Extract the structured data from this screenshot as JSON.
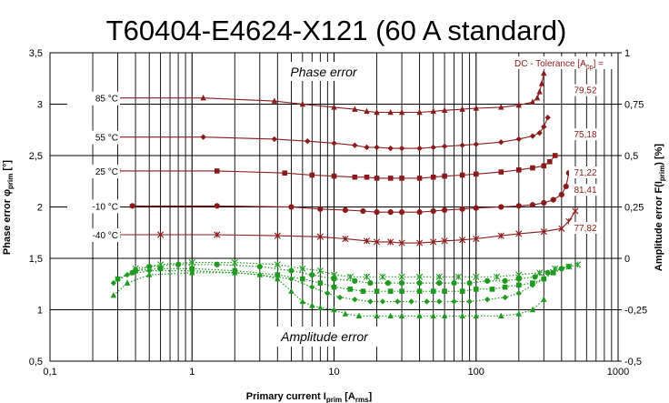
{
  "chart_data": {
    "type": "scatter",
    "title": "T60404-E4624-X121 (60 A standard)",
    "xlabel": "Primary current I",
    "xlabel_sub": "prim",
    "xlabel_unit": " [A",
    "xlabel_unit_sub": "rms",
    "xlabel_close": "]",
    "ylabel_left": "Phase error φ",
    "ylabel_left_sub": "prim",
    "ylabel_left_unit": " [°]",
    "ylabel_right": "Amplitude error F(I",
    "ylabel_right_sub": "prim",
    "ylabel_right_unit": ") [%]",
    "x_scale": "log",
    "xlim": [
      0.1,
      1000
    ],
    "x_ticks": [
      "0,1",
      "1",
      "10",
      "100",
      "1000"
    ],
    "ylim_left": [
      0.5,
      3.5
    ],
    "y_ticks_left": [
      "0,5",
      "1",
      "1,5",
      "2",
      "2,5",
      "3",
      "3,5"
    ],
    "ylim_right": [
      -0.5,
      1
    ],
    "y_ticks_right": [
      "-0,5",
      "-0,25",
      "0",
      "0,25",
      "0,5",
      "0,75",
      "1"
    ],
    "grid": true,
    "phase_label": "Phase error",
    "amplitude_label": "Amplitude error",
    "tolerance_label": "DC - Tolerance [A",
    "tolerance_label_sub": "0p",
    "tolerance_label_close": "] =",
    "colors": {
      "phase": "#8b1a1a",
      "amplitude": "#1f9a1f",
      "grid": "#000000"
    },
    "phase_series": [
      {
        "name": "85 °C",
        "marker": "triangle",
        "tolerance": "79,52",
        "x": [
          0.28,
          1.2,
          3.8,
          6,
          10,
          14,
          17,
          20,
          25,
          30,
          40,
          50,
          60,
          80,
          100,
          150,
          200,
          250,
          270,
          280,
          290,
          300
        ],
        "y": [
          3.06,
          3.06,
          3.03,
          3.0,
          2.97,
          2.95,
          2.93,
          2.92,
          2.92,
          2.92,
          2.92,
          2.93,
          2.94,
          2.95,
          2.96,
          2.97,
          2.99,
          3.02,
          3.06,
          3.12,
          3.2,
          3.3
        ]
      },
      {
        "name": "55 °C",
        "marker": "diamond",
        "tolerance": "75,18",
        "x": [
          0.28,
          1.2,
          3.8,
          6.5,
          10,
          14,
          17,
          20,
          25,
          30,
          40,
          50,
          60,
          80,
          100,
          150,
          200,
          250,
          280,
          300,
          320
        ],
        "y": [
          2.68,
          2.68,
          2.66,
          2.64,
          2.62,
          2.6,
          2.58,
          2.58,
          2.57,
          2.57,
          2.57,
          2.58,
          2.59,
          2.6,
          2.61,
          2.63,
          2.66,
          2.69,
          2.72,
          2.78,
          2.87
        ]
      },
      {
        "name": "25 °C",
        "marker": "square",
        "tolerance": "71,22",
        "x": [
          0.3,
          1.5,
          4.5,
          7,
          10,
          14,
          17,
          20,
          25,
          30,
          40,
          50,
          60,
          80,
          100,
          150,
          200,
          250,
          300,
          330,
          360
        ],
        "y": [
          2.35,
          2.35,
          2.33,
          2.31,
          2.3,
          2.29,
          2.29,
          2.28,
          2.28,
          2.28,
          2.28,
          2.29,
          2.3,
          2.31,
          2.32,
          2.34,
          2.36,
          2.38,
          2.4,
          2.44,
          2.5
        ]
      },
      {
        "name": "-10 °C",
        "marker": "circle",
        "tolerance": "81,41",
        "x": [
          0.38,
          1.5,
          5,
          8,
          12,
          16,
          20,
          25,
          30,
          40,
          50,
          60,
          80,
          100,
          150,
          200,
          250,
          300,
          350,
          400,
          430,
          450
        ],
        "y": [
          2.01,
          2.01,
          2.0,
          1.98,
          1.97,
          1.96,
          1.95,
          1.95,
          1.95,
          1.95,
          1.96,
          1.97,
          1.98,
          1.99,
          2.0,
          2.01,
          2.02,
          2.04,
          2.07,
          2.12,
          2.2,
          2.33
        ]
      },
      {
        "name": "-40 °C",
        "marker": "star",
        "tolerance": "77,82",
        "x": [
          0.3,
          0.6,
          1.5,
          4,
          8,
          12,
          17,
          20,
          25,
          30,
          40,
          50,
          60,
          80,
          100,
          150,
          200,
          300,
          400,
          450,
          500
        ],
        "y": [
          1.73,
          1.73,
          1.73,
          1.72,
          1.71,
          1.69,
          1.67,
          1.66,
          1.66,
          1.65,
          1.65,
          1.66,
          1.67,
          1.68,
          1.69,
          1.72,
          1.74,
          1.76,
          1.79,
          1.86,
          1.96
        ]
      }
    ],
    "amplitude_series": [
      {
        "name": "85 °C",
        "marker": "triangle",
        "x": [
          0.28,
          0.35,
          0.5,
          1,
          2,
          3,
          4,
          5,
          6,
          7,
          8,
          10,
          12,
          15,
          20,
          25,
          30,
          40,
          50,
          60,
          80,
          100,
          150,
          200,
          250,
          300
        ],
        "y": [
          -0.18,
          -0.12,
          -0.08,
          -0.07,
          -0.07,
          -0.08,
          -0.1,
          -0.16,
          -0.21,
          -0.23,
          -0.24,
          -0.25,
          -0.27,
          -0.28,
          -0.28,
          -0.28,
          -0.28,
          -0.28,
          -0.28,
          -0.28,
          -0.28,
          -0.28,
          -0.28,
          -0.27,
          -0.25,
          -0.2
        ]
      },
      {
        "name": "55 °C",
        "marker": "diamond",
        "x": [
          0.28,
          0.35,
          0.5,
          1,
          2,
          3,
          5,
          7,
          9,
          11,
          14,
          18,
          22,
          28,
          35,
          45,
          55,
          70,
          90,
          120,
          160,
          200,
          250,
          300
        ],
        "y": [
          -0.12,
          -0.08,
          -0.06,
          -0.06,
          -0.07,
          -0.08,
          -0.1,
          -0.14,
          -0.17,
          -0.19,
          -0.2,
          -0.21,
          -0.21,
          -0.21,
          -0.21,
          -0.21,
          -0.21,
          -0.21,
          -0.21,
          -0.2,
          -0.19,
          -0.17,
          -0.13,
          -0.1
        ]
      },
      {
        "name": "25 °C",
        "marker": "square",
        "x": [
          0.3,
          0.4,
          0.6,
          1,
          2,
          4,
          6,
          8,
          10,
          13,
          16,
          20,
          25,
          30,
          40,
          50,
          60,
          80,
          100,
          130,
          160,
          200,
          250,
          300,
          350
        ],
        "y": [
          -0.1,
          -0.06,
          -0.05,
          -0.05,
          -0.06,
          -0.08,
          -0.1,
          -0.12,
          -0.14,
          -0.15,
          -0.16,
          -0.16,
          -0.16,
          -0.16,
          -0.16,
          -0.16,
          -0.16,
          -0.16,
          -0.15,
          -0.15,
          -0.14,
          -0.13,
          -0.12,
          -0.1,
          -0.07
        ]
      },
      {
        "name": "-10 °C",
        "marker": "circle",
        "x": [
          0.38,
          0.5,
          0.8,
          1.5,
          3,
          5,
          7,
          10,
          14,
          18,
          24,
          30,
          40,
          55,
          70,
          90,
          120,
          160,
          200,
          260,
          320,
          400,
          450
        ],
        "y": [
          -0.07,
          -0.04,
          -0.03,
          -0.03,
          -0.04,
          -0.06,
          -0.08,
          -0.1,
          -0.11,
          -0.12,
          -0.12,
          -0.12,
          -0.12,
          -0.12,
          -0.12,
          -0.12,
          -0.11,
          -0.11,
          -0.1,
          -0.09,
          -0.07,
          -0.05,
          -0.04
        ]
      },
      {
        "name": "-40 °C",
        "marker": "star",
        "x": [
          0.4,
          0.6,
          1,
          2,
          4,
          6,
          8,
          10,
          13,
          17,
          22,
          30,
          40,
          55,
          75,
          100,
          140,
          200,
          280,
          360,
          450,
          520
        ],
        "y": [
          -0.05,
          -0.03,
          -0.02,
          -0.02,
          -0.03,
          -0.05,
          -0.06,
          -0.08,
          -0.09,
          -0.09,
          -0.09,
          -0.09,
          -0.09,
          -0.09,
          -0.09,
          -0.09,
          -0.09,
          -0.08,
          -0.07,
          -0.05,
          -0.04,
          -0.03
        ]
      }
    ]
  }
}
